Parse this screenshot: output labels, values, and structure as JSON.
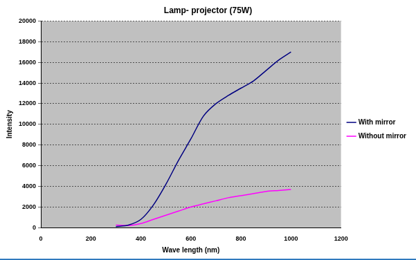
{
  "chart_data": {
    "type": "line",
    "title": "Lamp- projector (75W)",
    "x_label": "Wave length (nm)",
    "y_label": "Intensity",
    "x": [
      300,
      350,
      400,
      450,
      500,
      550,
      600,
      650,
      700,
      750,
      800,
      850,
      900,
      950,
      1000
    ],
    "series": [
      {
        "name": "With mirror",
        "color": "#000080",
        "values": [
          100,
          250,
          800,
          2200,
          4200,
          6500,
          8600,
          10800,
          12000,
          12800,
          13500,
          14200,
          15200,
          16200,
          17000
        ]
      },
      {
        "name": "Without mirror",
        "color": "#ff00ff",
        "values": [
          250,
          200,
          400,
          800,
          1200,
          1600,
          2000,
          2300,
          2600,
          2900,
          3100,
          3300,
          3500,
          3600,
          3700
        ]
      }
    ],
    "xlim": [
      0,
      1200
    ],
    "xticks": [
      0,
      200,
      400,
      600,
      800,
      1000,
      1200
    ],
    "ylim": [
      0,
      20000
    ],
    "yticks": [
      0,
      2000,
      4000,
      6000,
      8000,
      10000,
      12000,
      14000,
      16000,
      18000,
      20000
    ],
    "grid": true,
    "legend": "right"
  }
}
